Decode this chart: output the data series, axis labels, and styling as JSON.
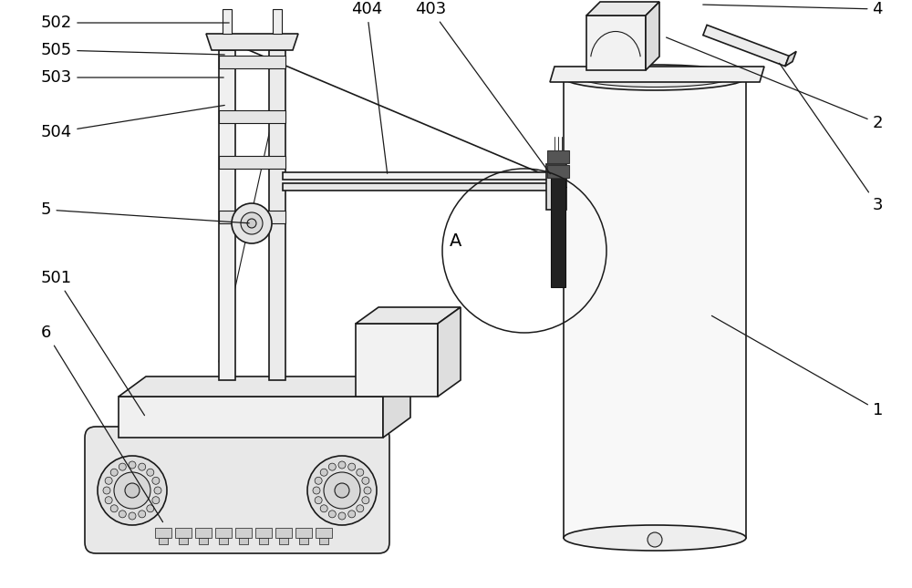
{
  "bg_color": "#ffffff",
  "line_color": "#1a1a1a",
  "label_color": "#000000",
  "fig_width": 10.0,
  "fig_height": 6.45,
  "font_size": 13
}
